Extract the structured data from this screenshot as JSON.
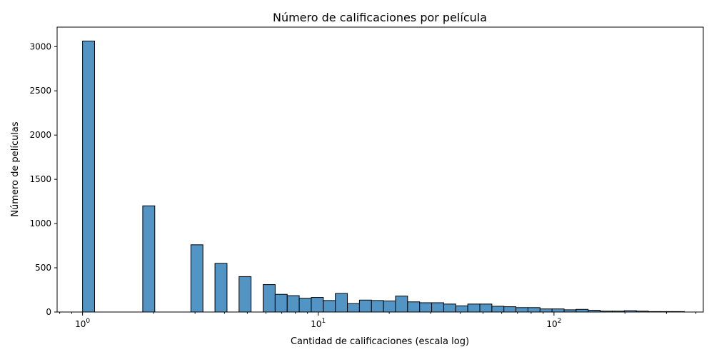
{
  "chart_data": {
    "type": "bar",
    "title": "Número de calificaciones por película",
    "xlabel": "Cantidad de calificaciones (escala log)",
    "ylabel": "Número de películas",
    "x_scale": "log10",
    "xlim": [
      0.78,
      430
    ],
    "ylim": [
      0,
      3220
    ],
    "y_ticks": [
      0,
      500,
      1000,
      1500,
      2000,
      2500,
      3000
    ],
    "x_ticks": [
      {
        "value": 1,
        "base": "10",
        "exp": "0"
      },
      {
        "value": 10,
        "base": "10",
        "exp": "1"
      },
      {
        "value": 100,
        "base": "10",
        "exp": "2"
      }
    ],
    "bin_edges": [
      1.0,
      1.1248,
      1.2651,
      1.4229,
      1.6005,
      1.8002,
      2.0249,
      2.2776,
      2.5618,
      2.8815,
      3.2411,
      3.6456,
      4.1006,
      4.6123,
      5.1879,
      5.8353,
      6.5635,
      7.3826,
      8.3039,
      9.3402,
      10.5058,
      11.8169,
      13.2916,
      14.9503,
      16.8161,
      18.9146,
      21.2751,
      23.9301,
      26.9165,
      30.2755,
      34.0537,
      38.3035,
      43.0835,
      48.4602,
      54.5078,
      61.3101,
      68.9613,
      77.5674,
      87.2475,
      98.1355,
      110.3822,
      124.1573,
      139.6514,
      157.0792,
      176.6819,
      198.7309,
      223.5316,
      251.4272,
      282.8038,
      318.0961,
      357.7927
    ],
    "counts": [
      3063,
      0,
      0,
      0,
      0,
      1200,
      0,
      0,
      0,
      760,
      0,
      550,
      0,
      400,
      0,
      310,
      200,
      185,
      155,
      165,
      130,
      210,
      95,
      135,
      130,
      125,
      180,
      115,
      105,
      105,
      90,
      70,
      90,
      90,
      65,
      60,
      50,
      50,
      35,
      35,
      25,
      30,
      20,
      10,
      10,
      15,
      10,
      5,
      5,
      5
    ]
  }
}
